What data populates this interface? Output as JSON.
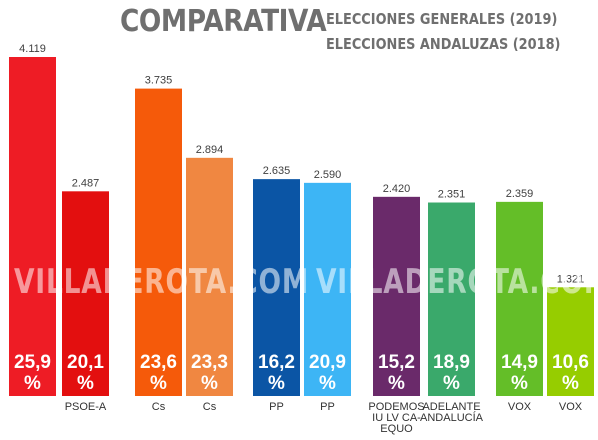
{
  "header": {
    "title": "COMPARATIVA",
    "subtitle_1": "ELECCIONES GENERALES (2019)",
    "subtitle_2": "ELECCIONES ANDALUZAS (2018)"
  },
  "watermark": {
    "text": "VILLADEROTA.COM"
  },
  "colors": {
    "PSOE_2019": "#ee1c25",
    "PSOE_2018": "#e30f0f",
    "Cs_2019": "#f55a0a",
    "Cs_2018": "#f08741",
    "PP_2019": "#0b55a5",
    "PP_2018": "#3db5f5",
    "UP_2019": "#6a2a6a",
    "UP_2018": "#3aa96b",
    "VOX_2019": "#64be28",
    "VOX_2018": "#96cd00",
    "title": "#6f6f6f"
  },
  "chart_data": {
    "type": "bar",
    "categories": [
      "",
      "PSOE-A",
      "Cs",
      "Cs",
      "PP",
      "PP",
      "PODEMOS IU LV CA-EQUO",
      "ADELANTE ANDALUCÍA",
      "VOX",
      "VOX"
    ],
    "values": [
      4119,
      2487,
      3735,
      2894,
      2635,
      2590,
      2420,
      2351,
      2359,
      1321
    ],
    "value_labels": [
      "4.119",
      "2.487",
      "3.735",
      "2.894",
      "2.635",
      "2.590",
      "2.420",
      "2.351",
      "2.359",
      "1.321"
    ],
    "percent_labels": [
      "25,9 %",
      "20,1 %",
      "23,6 %",
      "23,3 %",
      "16,2 %",
      "20,9 %",
      "15,2 %",
      "18,9 %",
      "14,9 %",
      "10,6 %"
    ],
    "bar_colors": [
      "#ee1c25",
      "#e30f0f",
      "#f55a0a",
      "#f08741",
      "#0b55a5",
      "#3db5f5",
      "#6a2a6a",
      "#3aa96b",
      "#64be28",
      "#96cd00"
    ],
    "ylim": [
      0,
      4119
    ],
    "grid": false,
    "legend": "none"
  }
}
